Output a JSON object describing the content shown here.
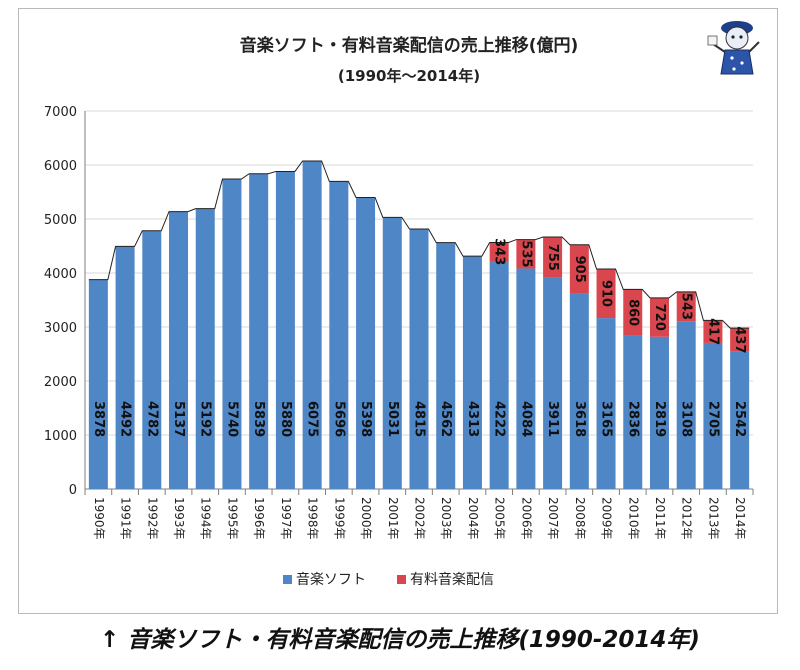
{
  "caption": "↑ 音楽ソフト・有料音楽配信の売上推移(1990-2014年)",
  "chart_data": {
    "type": "bar",
    "stacked": true,
    "title": "音楽ソフト・有料音楽配信の売上推移(億円)",
    "subtitle": "(1990年～2014年)",
    "categories": [
      "1990年",
      "1991年",
      "1992年",
      "1993年",
      "1994年",
      "1995年",
      "1996年",
      "1997年",
      "1998年",
      "1999年",
      "2000年",
      "2001年",
      "2002年",
      "2003年",
      "2004年",
      "2005年",
      "2006年",
      "2007年",
      "2008年",
      "2009年",
      "2010年",
      "2011年",
      "2012年",
      "2013年",
      "2014年"
    ],
    "series": [
      {
        "name": "音楽ソフト",
        "color": "#4f86c6",
        "values": [
          3878,
          4492,
          4782,
          5137,
          5192,
          5740,
          5839,
          5880,
          6075,
          5696,
          5398,
          5031,
          4815,
          4562,
          4313,
          4222,
          4084,
          3911,
          3618,
          3165,
          2836,
          2819,
          3108,
          2705,
          2542
        ]
      },
      {
        "name": "有料音楽配信",
        "color": "#d9464e",
        "values": [
          null,
          null,
          null,
          null,
          null,
          null,
          null,
          null,
          null,
          null,
          null,
          null,
          null,
          null,
          null,
          343,
          535,
          755,
          905,
          910,
          860,
          720,
          543,
          417,
          437
        ]
      }
    ],
    "ylim": [
      0,
      7000
    ],
    "yticks": [
      "0",
      "1000",
      "2000",
      "3000",
      "4000",
      "5000",
      "6000",
      "7000"
    ],
    "grid": true,
    "legend_position": "bottom"
  }
}
